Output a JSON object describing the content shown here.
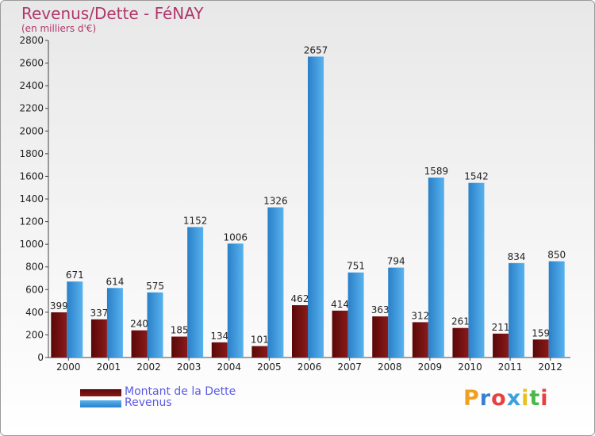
{
  "chart_data": {
    "type": "bar",
    "title": "Revenus/Dette - FéNAY",
    "subtitle": "(en milliers d'€)",
    "categories": [
      "2000",
      "2001",
      "2002",
      "2003",
      "2004",
      "2005",
      "2006",
      "2007",
      "2008",
      "2009",
      "2010",
      "2011",
      "2012"
    ],
    "series": [
      {
        "name": "Montant de la Dette",
        "color": "#7a0e0e",
        "values": [
          399,
          337,
          240,
          185,
          134,
          101,
          462,
          414,
          363,
          312,
          261,
          211,
          159
        ]
      },
      {
        "name": "Revenus",
        "color": "#3a9ee0",
        "values": [
          671,
          614,
          575,
          1152,
          1006,
          1326,
          2657,
          751,
          794,
          1589,
          1542,
          834,
          850
        ]
      }
    ],
    "ylim": [
      0,
      2800
    ],
    "yticks": [
      0,
      200,
      400,
      600,
      800,
      1000,
      1200,
      1400,
      1600,
      1800,
      2000,
      2200,
      2400,
      2600,
      2800
    ],
    "grid": false,
    "legend_position": "bottom-left"
  },
  "logo": {
    "text": "Proxiti",
    "colors": [
      "#f0a020",
      "#3a7fd0",
      "#e84040",
      "#3aa0e0",
      "#e8c020",
      "#4ab848",
      "#e84040"
    ]
  }
}
